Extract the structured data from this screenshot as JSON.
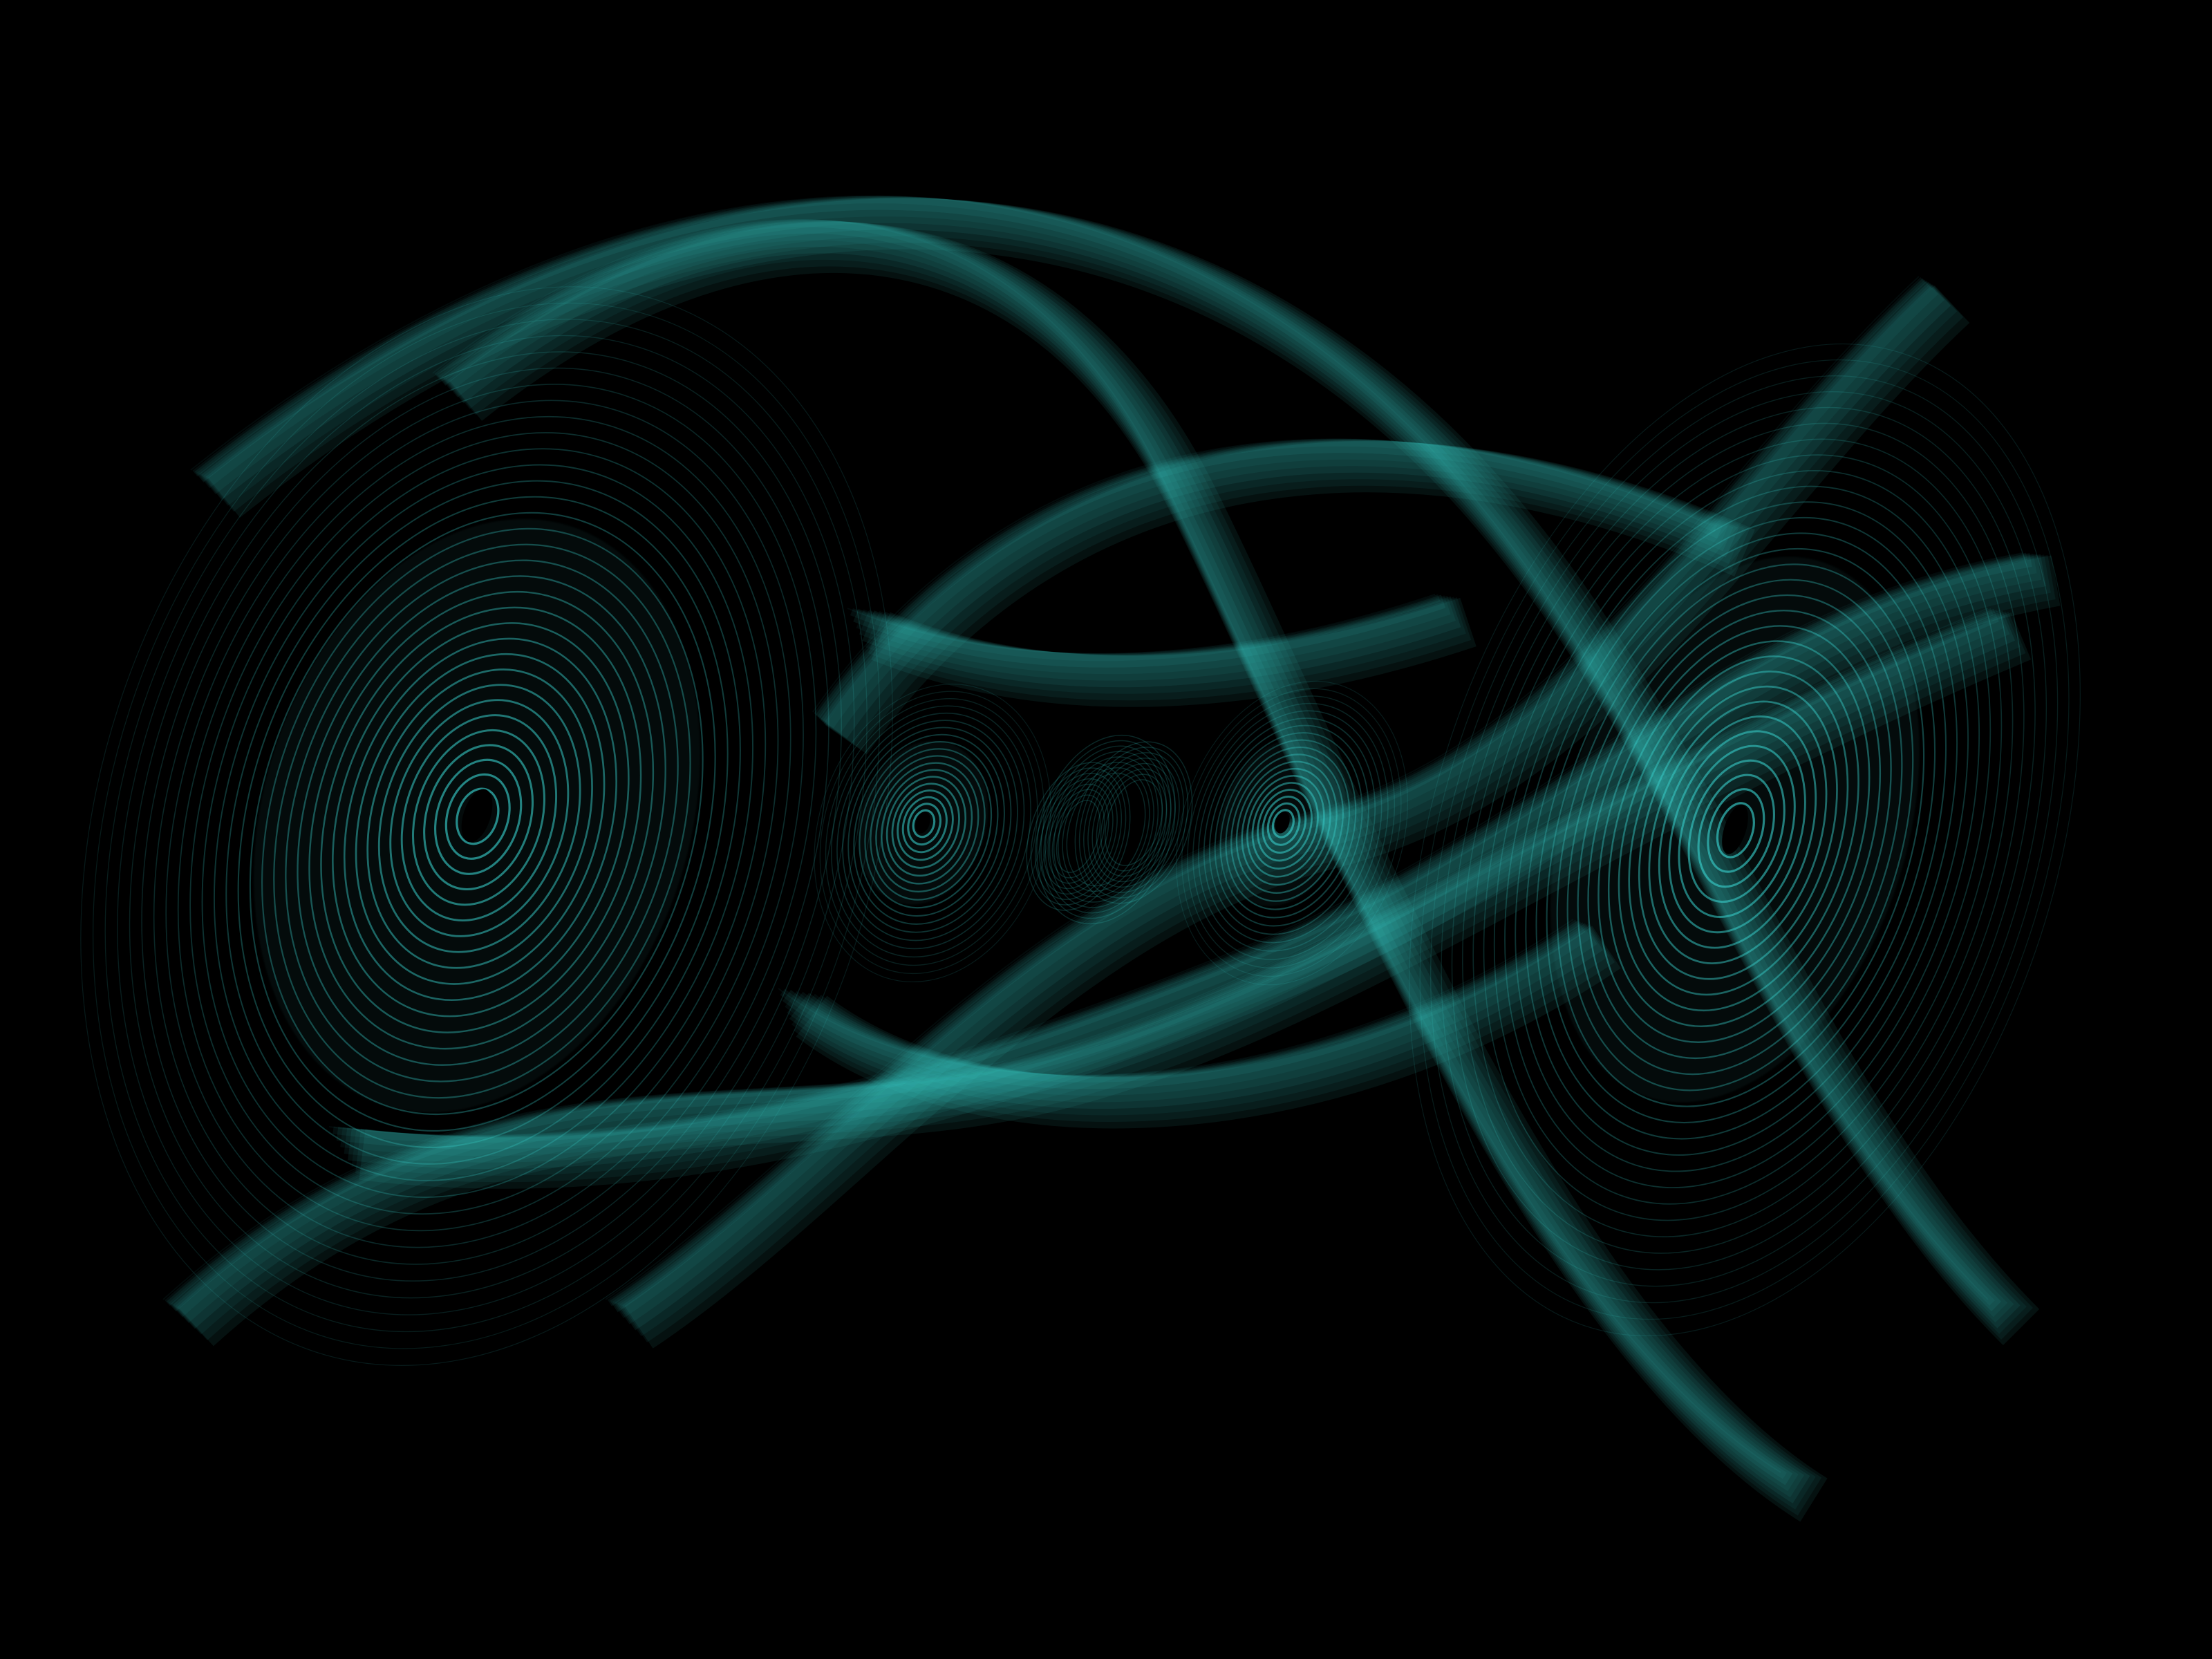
{
  "visualization": {
    "subject": "chaotic-attractor",
    "background_color": "#000000",
    "trail_color": "#3ad6d2",
    "core_color": "#000000",
    "vortex_count": 4
  }
}
